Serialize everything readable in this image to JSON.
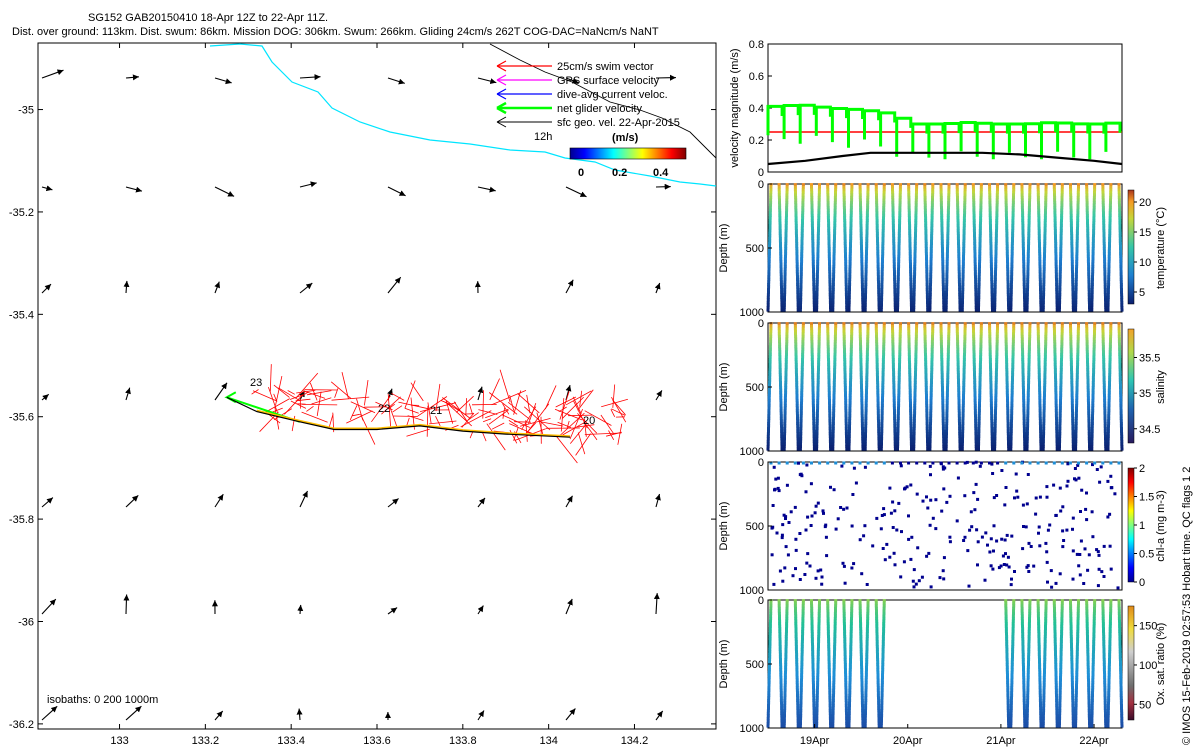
{
  "title_line1": "SG152 GAB20150410 18-Apr 12Z to 22-Apr 11Z.",
  "title_line2": "Dist. over ground: 113km. Dist. swum: 86km. Mission DOG: 306km. Swum: 266km. Gliding 24cm/s 262T COG-DAC=NaNcm/s NaNT",
  "watermark": "© IMOS 15-Feb-2019 02:57:53 Hobart time. QC flags 1  2",
  "colors": {
    "swim": "#ff0000",
    "gps": "#ff00ff",
    "dac": "#0000ff",
    "net": "#00ff00",
    "geo": "#000000",
    "coast": "#00e5ff",
    "track": "#000000"
  },
  "chart_data": [
    {
      "type": "scatter",
      "name": "map",
      "x_ticks": [
        133,
        133.2,
        133.4,
        133.6,
        133.8,
        134,
        134.2
      ],
      "x_tick_labels": [
        "133",
        "133.2",
        "133.4",
        "133.6",
        "133.8",
        "134",
        "134.2"
      ],
      "y_ticks": [
        -35,
        -35.2,
        -35.4,
        -35.6,
        -35.8,
        -36,
        -36.2
      ],
      "y_tick_labels": [
        "-35",
        "-35.2",
        "-35.4",
        "-35.6",
        "-35.8",
        "-36",
        "-36.2"
      ],
      "xlim": [
        132.81,
        134.39
      ],
      "ylim": [
        -36.21,
        -34.87
      ],
      "legend": [
        {
          "label": "25cm/s swim vector",
          "color": "#ff0000"
        },
        {
          "label": "GPS surface velocity",
          "color": "#ff00ff"
        },
        {
          "label": "dive-avg current veloc.",
          "color": "#0000ff"
        },
        {
          "label": "net glider velocity",
          "color": "#00ff00"
        },
        {
          "label": "sfc geo. vel. 22-Apr-2015",
          "color": "#000000"
        }
      ],
      "legend_note": "12h",
      "colorbar": {
        "label": "(m/s)",
        "ticks": [
          "0",
          "0.2",
          "0.4"
        ]
      },
      "isobaths_label": "isobaths: 0   200  1000m",
      "track_labels": [
        "23",
        "22",
        "21",
        "20"
      ],
      "track": [
        [
          133.25,
          -35.562
        ],
        [
          133.32,
          -35.59
        ],
        [
          133.42,
          -35.61
        ],
        [
          133.5,
          -35.625
        ],
        [
          133.6,
          -35.625
        ],
        [
          133.7,
          -35.618
        ],
        [
          133.8,
          -35.628
        ],
        [
          133.9,
          -35.634
        ],
        [
          134.05,
          -35.64
        ]
      ]
    },
    {
      "type": "line",
      "name": "velocity",
      "ylabel": "velocity magnitude (m/s)",
      "y_ticks": [
        0,
        0.2,
        0.4,
        0.6,
        0.8
      ],
      "y_tick_labels": [
        "0",
        "0.2",
        "0.4",
        "0.6",
        "0.8"
      ],
      "ylim": [
        0,
        0.8
      ],
      "xlim": [
        18.5,
        22.3
      ],
      "reference_speed": 0.25,
      "series": [
        {
          "x": [
            18.5,
            18.8,
            19.1,
            19.4,
            19.6,
            19.8,
            20.0,
            20.3,
            20.6,
            20.9,
            21.2,
            21.5,
            21.8,
            22.1,
            22.3
          ],
          "values": [
            0.41,
            0.42,
            0.4,
            0.39,
            0.38,
            0.36,
            0.3,
            0.3,
            0.31,
            0.3,
            0.3,
            0.31,
            0.3,
            0.3,
            0.34
          ]
        },
        {
          "x": [
            18.5,
            18.9,
            19.3,
            19.6,
            20.0,
            20.4,
            20.8,
            21.2,
            21.6,
            22.0,
            22.3
          ],
          "values": [
            0.05,
            0.07,
            0.1,
            0.12,
            0.12,
            0.12,
            0.12,
            0.11,
            0.09,
            0.07,
            0.05
          ]
        }
      ]
    },
    {
      "type": "scatter",
      "name": "temperature",
      "ylabel": "Depth (m)",
      "y_ticks": [
        0,
        500,
        1000
      ],
      "y_tick_labels": [
        "0",
        "500",
        "1000"
      ],
      "ylim": [
        1000,
        0
      ],
      "colorbar": {
        "label": "temperature (°C)",
        "ticks": [
          "20",
          "15",
          "10",
          "5"
        ],
        "range": [
          3,
          22
        ]
      }
    },
    {
      "type": "scatter",
      "name": "salinity",
      "ylabel": "Depth (m)",
      "y_ticks": [
        0,
        500,
        1000
      ],
      "y_tick_labels": [
        "0",
        "500",
        "1000"
      ],
      "ylim": [
        1000,
        0
      ],
      "colorbar": {
        "label": "salinity",
        "ticks": [
          "35.5",
          "35",
          "34.5"
        ],
        "range": [
          34.3,
          35.9
        ]
      }
    },
    {
      "type": "scatter",
      "name": "chla",
      "ylabel": "Depth (m)",
      "y_ticks": [
        0,
        500,
        1000
      ],
      "y_tick_labels": [
        "0",
        "500",
        "1000"
      ],
      "ylim": [
        1000,
        0
      ],
      "colorbar": {
        "label": "chl-a (mg m-3)",
        "ticks": [
          "2",
          "1.5",
          "1",
          "0.5",
          "0"
        ],
        "range": [
          0,
          2
        ]
      }
    },
    {
      "type": "scatter",
      "name": "oxygen",
      "ylabel": "Depth (m)",
      "y_ticks": [
        0,
        500,
        1000
      ],
      "y_tick_labels": [
        "0",
        "500",
        "1000"
      ],
      "ylim": [
        1000,
        0
      ],
      "x_ticks": [
        19,
        20,
        21,
        22
      ],
      "x_tick_labels": [
        "19Apr",
        "20Apr",
        "21Apr",
        "22Apr"
      ],
      "colorbar": {
        "label": "Ox. sat. ratio (%)",
        "ticks": [
          "150",
          "100",
          "50"
        ],
        "range": [
          30,
          175
        ]
      }
    }
  ]
}
